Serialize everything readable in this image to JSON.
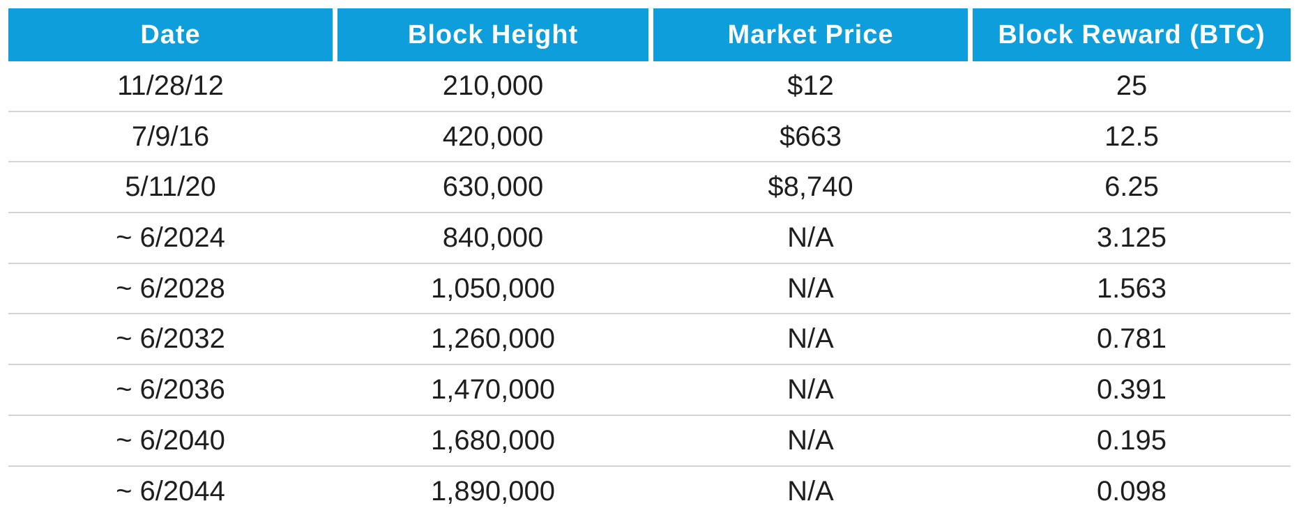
{
  "colors": {
    "header_background": "#0d9edb",
    "header_text": "#ffffff",
    "row_divider": "#d3d3d3",
    "body_text": "#1e1e1e"
  },
  "table": {
    "columns": [
      "Date",
      "Block Height",
      "Market Price",
      "Block Reward (BTC)"
    ],
    "rows": [
      {
        "date": "11/28/12",
        "block_height": "210,000",
        "market_price": "$12",
        "block_reward": "25"
      },
      {
        "date": "7/9/16",
        "block_height": "420,000",
        "market_price": "$663",
        "block_reward": "12.5"
      },
      {
        "date": "5/11/20",
        "block_height": "630,000",
        "market_price": "$8,740",
        "block_reward": "6.25"
      },
      {
        "date": "~ 6/2024",
        "block_height": "840,000",
        "market_price": "N/A",
        "block_reward": "3.125"
      },
      {
        "date": "~ 6/2028",
        "block_height": "1,050,000",
        "market_price": "N/A",
        "block_reward": "1.563"
      },
      {
        "date": "~ 6/2032",
        "block_height": "1,260,000",
        "market_price": "N/A",
        "block_reward": "0.781"
      },
      {
        "date": "~ 6/2036",
        "block_height": "1,470,000",
        "market_price": "N/A",
        "block_reward": "0.391"
      },
      {
        "date": "~ 6/2040",
        "block_height": "1,680,000",
        "market_price": "N/A",
        "block_reward": "0.195"
      },
      {
        "date": "~ 6/2044",
        "block_height": "1,890,000",
        "market_price": "N/A",
        "block_reward": "0.098"
      }
    ]
  },
  "chart_data": {
    "type": "table",
    "title": "",
    "columns": [
      "Date",
      "Block Height",
      "Market Price",
      "Block Reward (BTC)"
    ],
    "rows": [
      [
        "11/28/12",
        210000,
        "$12",
        25
      ],
      [
        "7/9/16",
        420000,
        "$663",
        12.5
      ],
      [
        "5/11/20",
        630000,
        "$8,740",
        6.25
      ],
      [
        "~ 6/2024",
        840000,
        "N/A",
        3.125
      ],
      [
        "~ 6/2028",
        1050000,
        "N/A",
        1.563
      ],
      [
        "~ 6/2032",
        1260000,
        "N/A",
        0.781
      ],
      [
        "~ 6/2036",
        1470000,
        "N/A",
        0.391
      ],
      [
        "~ 6/2040",
        1680000,
        "N/A",
        0.195
      ],
      [
        "~ 6/2044",
        1890000,
        "N/A",
        0.098
      ]
    ]
  }
}
